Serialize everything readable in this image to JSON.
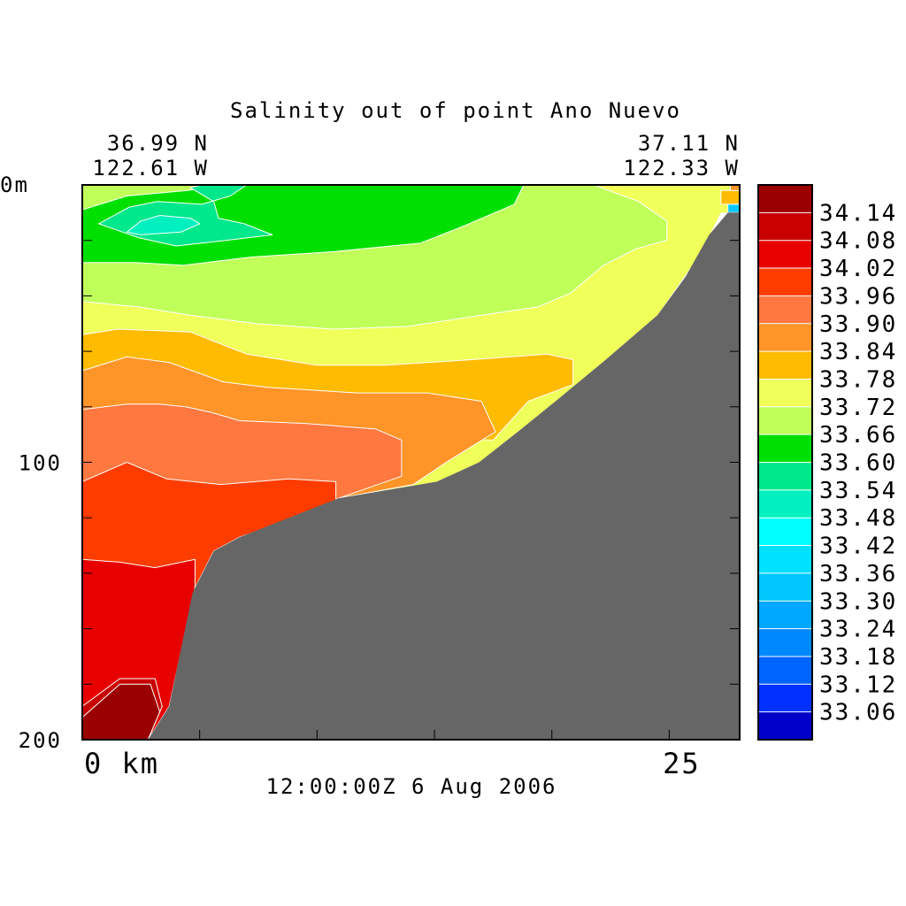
{
  "chart_data": {
    "type": "heatmap",
    "title": "Salinity out of point Ano Nuevo",
    "start_position": {
      "lat": "36.99 N",
      "lon": "122.61 W"
    },
    "end_position": {
      "lat": "37.11 N",
      "lon": "122.33 W"
    },
    "timestamp": "12:00:00Z   6 Aug 2006",
    "x_axis": {
      "ticks": [
        {
          "value": 0,
          "label": "0 km"
        },
        {
          "value": 25,
          "label": "25"
        }
      ],
      "range": [
        0,
        28
      ]
    },
    "y_axis": {
      "ticks": [
        {
          "value": 0,
          "label": "0m"
        },
        {
          "value": 100,
          "label": "100"
        },
        {
          "value": 200,
          "label": "200"
        }
      ],
      "range": [
        0,
        200
      ],
      "inverted": true
    },
    "colorbar": {
      "levels": [
        {
          "label": "34.14",
          "color": "#9b0000"
        },
        {
          "label": "34.08",
          "color": "#c80000"
        },
        {
          "label": "34.02",
          "color": "#e80000"
        },
        {
          "label": "33.96",
          "color": "#ff3c00"
        },
        {
          "label": "33.90",
          "color": "#ff7840"
        },
        {
          "label": "33.84",
          "color": "#ff9428"
        },
        {
          "label": "33.78",
          "color": "#ffbb00"
        },
        {
          "label": "33.72",
          "color": "#f0ff5a"
        },
        {
          "label": "33.66",
          "color": "#c0ff5a"
        },
        {
          "label": "33.60",
          "color": "#00e000"
        },
        {
          "label": "33.54",
          "color": "#00e88c"
        },
        {
          "label": "33.48",
          "color": "#00f0c0"
        },
        {
          "label": "33.42",
          "color": "#00ffff"
        },
        {
          "label": "33.36",
          "color": "#00e0ff"
        },
        {
          "label": "33.30",
          "color": "#00c8ff"
        },
        {
          "label": "33.24",
          "color": "#00a8ff"
        },
        {
          "label": "33.18",
          "color": "#0088ff"
        },
        {
          "label": "33.12",
          "color": "#0064ff"
        },
        {
          "label": "33.06",
          "color": "#0030ff"
        },
        {
          "label": "",
          "color": "#0000c8"
        }
      ]
    },
    "bathymetry": {
      "color": "#666666",
      "profile": [
        {
          "x_km": 2.8,
          "depth_m": 200
        },
        {
          "x_km": 3.7,
          "depth_m": 188
        },
        {
          "x_km": 4.7,
          "depth_m": 147
        },
        {
          "x_km": 5.6,
          "depth_m": 132
        },
        {
          "x_km": 6.7,
          "depth_m": 127
        },
        {
          "x_km": 10.9,
          "depth_m": 113
        },
        {
          "x_km": 15.1,
          "depth_m": 107
        },
        {
          "x_km": 16.9,
          "depth_m": 100
        },
        {
          "x_km": 18.7,
          "depth_m": 88
        },
        {
          "x_km": 20.3,
          "depth_m": 77
        },
        {
          "x_km": 22.3,
          "depth_m": 63
        },
        {
          "x_km": 24.5,
          "depth_m": 47
        },
        {
          "x_km": 25.7,
          "depth_m": 33
        },
        {
          "x_km": 26.7,
          "depth_m": 18
        },
        {
          "x_km": 27.5,
          "depth_m": 10
        },
        {
          "x_km": 28.0,
          "depth_m": 10
        }
      ]
    },
    "regions": [
      {
        "level": "33.72",
        "polygon": [
          [
            0,
            0
          ],
          [
            28,
            0
          ],
          [
            28,
            10
          ],
          [
            27.2,
            10
          ],
          [
            26.3,
            25
          ],
          [
            24.5,
            47
          ],
          [
            22.3,
            63
          ],
          [
            20.3,
            77
          ],
          [
            18.7,
            88
          ],
          [
            16.9,
            100
          ],
          [
            15.1,
            107
          ],
          [
            10.9,
            113
          ],
          [
            6.7,
            127
          ],
          [
            5.6,
            132
          ],
          [
            4.7,
            147
          ],
          [
            3.7,
            188
          ],
          [
            2.8,
            200
          ],
          [
            0,
            200
          ]
        ]
      },
      {
        "level": "33.66",
        "polygon": [
          [
            0,
            0
          ],
          [
            21.8,
            0
          ],
          [
            23.7,
            6
          ],
          [
            24.9,
            13
          ],
          [
            24.9,
            20
          ],
          [
            23.6,
            23
          ],
          [
            22.2,
            29
          ],
          [
            20.8,
            39
          ],
          [
            19.4,
            44
          ],
          [
            17.0,
            47
          ],
          [
            13.9,
            51
          ],
          [
            10.7,
            52
          ],
          [
            7.4,
            50
          ],
          [
            4.6,
            47
          ],
          [
            2.4,
            44
          ],
          [
            0,
            42
          ]
        ]
      },
      {
        "level": "33.78",
        "polygon": [
          [
            0,
            54
          ],
          [
            1.5,
            52
          ],
          [
            4.6,
            53
          ],
          [
            7.0,
            61
          ],
          [
            10.0,
            65
          ],
          [
            12.9,
            65
          ],
          [
            16.6,
            63
          ],
          [
            19.8,
            61
          ],
          [
            20.9,
            63
          ],
          [
            20.9,
            72
          ],
          [
            19.0,
            78
          ],
          [
            17.5,
            92
          ],
          [
            10.0,
            90
          ],
          [
            6.0,
            83
          ],
          [
            0,
            79
          ]
        ]
      },
      {
        "level": "33.84",
        "polygon": [
          [
            0,
            67
          ],
          [
            1.9,
            62
          ],
          [
            3.7,
            64
          ],
          [
            6.0,
            71
          ],
          [
            7.9,
            73
          ],
          [
            11.7,
            75
          ],
          [
            14.7,
            75
          ],
          [
            17.0,
            78
          ],
          [
            17.6,
            89
          ],
          [
            15.5,
            100
          ],
          [
            14.1,
            108
          ],
          [
            10.9,
            113
          ],
          [
            6.7,
            127
          ],
          [
            5.6,
            132
          ],
          [
            4.7,
            147
          ],
          [
            3.7,
            188
          ],
          [
            2.8,
            200
          ],
          [
            0,
            200
          ]
        ]
      },
      {
        "level": "33.90",
        "polygon": [
          [
            0,
            81
          ],
          [
            1.9,
            79
          ],
          [
            3.3,
            79
          ],
          [
            4.4,
            80
          ],
          [
            5.5,
            82
          ],
          [
            6.7,
            85
          ],
          [
            9.5,
            86
          ],
          [
            12.5,
            88
          ],
          [
            13.6,
            92
          ],
          [
            13.6,
            105
          ],
          [
            10.9,
            113
          ],
          [
            6.7,
            127
          ],
          [
            5.6,
            132
          ],
          [
            4.7,
            147
          ],
          [
            3.7,
            188
          ],
          [
            2.8,
            200
          ],
          [
            0,
            200
          ]
        ]
      },
      {
        "level": "33.96",
        "polygon": [
          [
            0,
            107
          ],
          [
            1.9,
            100
          ],
          [
            3.6,
            106
          ],
          [
            5.9,
            108
          ],
          [
            8.8,
            106
          ],
          [
            10.8,
            107
          ],
          [
            10.8,
            115
          ],
          [
            6.7,
            127
          ],
          [
            5.6,
            132
          ],
          [
            4.7,
            147
          ],
          [
            3.7,
            188
          ],
          [
            2.8,
            200
          ],
          [
            0,
            200
          ]
        ]
      },
      {
        "level": "34.02",
        "polygon": [
          [
            0,
            135
          ],
          [
            1.6,
            136
          ],
          [
            3.1,
            138
          ],
          [
            4.8,
            135
          ],
          [
            4.8,
            145
          ],
          [
            3.7,
            188
          ],
          [
            2.8,
            200
          ],
          [
            0,
            200
          ]
        ]
      },
      {
        "level": "34.08",
        "polygon": [
          [
            0,
            188
          ],
          [
            1.6,
            178
          ],
          [
            3.1,
            178
          ],
          [
            3.4,
            188
          ],
          [
            2.8,
            200
          ],
          [
            0,
            200
          ]
        ]
      },
      {
        "level": "34.14",
        "polygon": [
          [
            0,
            192
          ],
          [
            1.6,
            180
          ],
          [
            2.9,
            180
          ],
          [
            3.3,
            190
          ],
          [
            2.8,
            200
          ],
          [
            0,
            200
          ]
        ]
      },
      {
        "level": "33.60",
        "polygon": [
          [
            0,
            9
          ],
          [
            1.9,
            4
          ],
          [
            4.5,
            2
          ],
          [
            5.8,
            0
          ],
          [
            18.8,
            0
          ],
          [
            18.4,
            7
          ],
          [
            16.2,
            15
          ],
          [
            14.4,
            21
          ],
          [
            10.8,
            24
          ],
          [
            7.2,
            26
          ],
          [
            4.3,
            29
          ],
          [
            2.3,
            28
          ],
          [
            0,
            28
          ]
        ]
      },
      {
        "level": "33.54",
        "polygon": [
          [
            0.7,
            14
          ],
          [
            2.0,
            8
          ],
          [
            3.2,
            6
          ],
          [
            5.1,
            7
          ],
          [
            6.3,
            4
          ],
          [
            7.0,
            0
          ],
          [
            5.1,
            0
          ],
          [
            4.6,
            1
          ],
          [
            5.6,
            6
          ],
          [
            5.8,
            12
          ],
          [
            6.9,
            14
          ],
          [
            8.1,
            18
          ],
          [
            6.1,
            20
          ],
          [
            4.0,
            22
          ],
          [
            2.4,
            19
          ]
        ]
      },
      {
        "level": "33.48",
        "polygon": [
          [
            1.9,
            17
          ],
          [
            2.5,
            13
          ],
          [
            3.3,
            11
          ],
          [
            4.6,
            12
          ],
          [
            5.0,
            14
          ],
          [
            4.2,
            17
          ],
          [
            2.5,
            18
          ]
        ]
      },
      {
        "level": "33.78",
        "polygon": [
          [
            27.2,
            2
          ],
          [
            28,
            2
          ],
          [
            28,
            7
          ],
          [
            27.2,
            7
          ]
        ]
      },
      {
        "level": "33.84",
        "polygon": [
          [
            27.6,
            0
          ],
          [
            28,
            0
          ],
          [
            28,
            2
          ],
          [
            27.6,
            2
          ]
        ]
      },
      {
        "level": "33.30",
        "polygon": [
          [
            27.5,
            7
          ],
          [
            28,
            7
          ],
          [
            28,
            10
          ],
          [
            27.5,
            10
          ]
        ]
      }
    ]
  }
}
